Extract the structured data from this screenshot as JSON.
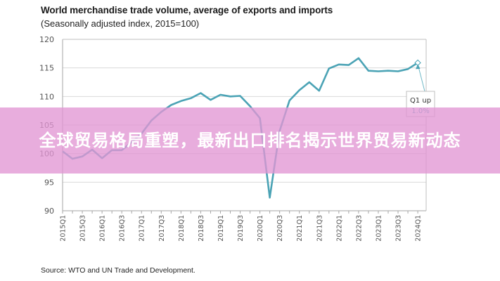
{
  "header": {
    "title": "World merchandise trade volume, average of exports and imports",
    "subtitle": "(Seasonally adjusted index, 2015=100)"
  },
  "footer": {
    "source": "Source: WTO and UN Trade and Development."
  },
  "banner": {
    "text": "全球贸易格局重塑，最新出口排名揭示世界贸易新动态",
    "background_color": "#e9a6dc"
  },
  "annotation": {
    "line1": "Q1 up",
    "line2": "1.0%"
  },
  "colors": {
    "series": "#4ba3b5",
    "annotation_pct": "#4ba3b5",
    "grid": "#d9d9d9"
  },
  "chart_data": {
    "type": "line",
    "title": "World merchandise trade volume, average of exports and imports",
    "subtitle": "(Seasonally adjusted index, 2015=100)",
    "xlabel": "",
    "ylabel": "",
    "ylim": [
      90,
      120
    ],
    "yticks": [
      90,
      95,
      100,
      105,
      110,
      115,
      120
    ],
    "grid": true,
    "legend": "none",
    "x": [
      "2015Q1",
      "2015Q2",
      "2015Q3",
      "2015Q4",
      "2016Q1",
      "2016Q2",
      "2016Q3",
      "2016Q4",
      "2017Q1",
      "2017Q2",
      "2017Q3",
      "2017Q4",
      "2018Q1",
      "2018Q2",
      "2018Q3",
      "2018Q4",
      "2019Q1",
      "2019Q2",
      "2019Q3",
      "2019Q4",
      "2020Q1",
      "2020Q2",
      "2020Q3",
      "2020Q4",
      "2021Q1",
      "2021Q2",
      "2021Q3",
      "2021Q4",
      "2022Q1",
      "2022Q2",
      "2022Q3",
      "2022Q4",
      "2023Q1",
      "2023Q2",
      "2023Q3",
      "2023Q4",
      "2024Q1"
    ],
    "xtick_labels": [
      "2015Q1",
      "2015Q3",
      "2016Q1",
      "2016Q3",
      "2017Q1",
      "2017Q3",
      "2018Q1",
      "2018Q3",
      "2019Q1",
      "2019Q3",
      "2020Q1",
      "2020Q3",
      "2021Q1",
      "2021Q3",
      "2022Q1",
      "2022Q3",
      "2023Q1",
      "2023Q3",
      "2024Q1"
    ],
    "series": [
      {
        "name": "World merchandise trade volume",
        "values": [
          100.4,
          99.1,
          99.5,
          100.7,
          99.2,
          100.6,
          100.6,
          102.0,
          103.5,
          105.8,
          107.3,
          108.5,
          109.2,
          109.7,
          110.6,
          109.4,
          110.3,
          110.0,
          110.1,
          108.3,
          106.2,
          92.3,
          104.0,
          109.3,
          111.1,
          112.5,
          111.0,
          114.9,
          115.6,
          115.5,
          116.7,
          114.5,
          114.4,
          114.5,
          114.4,
          114.8,
          115.9
        ]
      }
    ],
    "annotations": [
      {
        "x": "2024Q1",
        "text": "Q1 up 1.0%"
      }
    ]
  }
}
